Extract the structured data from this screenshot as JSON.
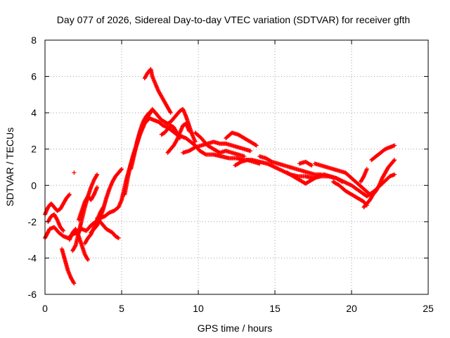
{
  "chart_data": {
    "type": "scatter",
    "title": "Day 077 of 2026, Sidereal Day-to-day VTEC variation (SDTVAR) for receiver gfth",
    "xlabel": "GPS time / hours",
    "ylabel": "SDTVAR / TECUs",
    "xlim": [
      0,
      25
    ],
    "ylim": [
      -6,
      8
    ],
    "xticks": [
      0,
      5,
      10,
      15,
      20,
      25
    ],
    "yticks": [
      -6,
      -4,
      -2,
      0,
      2,
      4,
      6,
      8
    ],
    "grid": true,
    "marker": "+",
    "series": [
      {
        "name": "SDTVAR",
        "color": "#ff0000",
        "tracks": [
          {
            "x": [
              0.0,
              0.3,
              0.6,
              0.9,
              1.2,
              1.5,
              1.8,
              2.1,
              2.4,
              2.7,
              3.0,
              3.3,
              3.6,
              3.9,
              4.2,
              4.5,
              4.8,
              5.0,
              5.3,
              5.6,
              5.9,
              6.2,
              6.5,
              6.8,
              7.1,
              7.4,
              7.7,
              8.0,
              8.3,
              8.6,
              8.9,
              9.2,
              9.5,
              9.8,
              10.1,
              10.5,
              11.0,
              11.5,
              12.0,
              12.5,
              13.0,
              13.5,
              14.0,
              14.5,
              15.0,
              15.5,
              16.0,
              16.5,
              17.0,
              17.5,
              18.0,
              18.5,
              19.0,
              19.5,
              20.0,
              20.5,
              21.0,
              21.5,
              22.0,
              22.5,
              22.8
            ],
            "y": [
              -2.9,
              -2.4,
              -2.3,
              -2.6,
              -2.8,
              -2.9,
              -2.7,
              -2.6,
              -2.4,
              -2.5,
              -2.2,
              -2.0,
              -1.8,
              -1.7,
              -1.5,
              -1.4,
              -1.2,
              -0.8,
              0.3,
              1.2,
              2.0,
              2.8,
              3.4,
              3.7,
              3.6,
              3.5,
              3.3,
              3.2,
              3.0,
              2.8,
              2.7,
              2.6,
              2.4,
              2.2,
              1.9,
              1.7,
              1.7,
              1.6,
              1.5,
              1.5,
              1.4,
              1.4,
              1.3,
              1.2,
              1.0,
              0.8,
              0.6,
              0.5,
              0.5,
              0.4,
              0.5,
              0.5,
              0.4,
              0.2,
              0.0,
              -0.3,
              -0.6,
              -0.3,
              0.1,
              0.5,
              0.6
            ]
          },
          {
            "x": [
              0.0,
              0.2,
              0.4,
              0.6,
              0.8,
              1.0,
              1.2,
              1.4,
              1.6
            ],
            "y": [
              -1.6,
              -1.2,
              -1.0,
              -1.2,
              -1.4,
              -1.3,
              -1.0,
              -0.7,
              -0.5
            ]
          },
          {
            "x": [
              0.2,
              0.4,
              0.6,
              0.8,
              1.0,
              1.2
            ],
            "y": [
              -2.0,
              -1.7,
              -1.6,
              -1.9,
              -2.3,
              -2.5
            ]
          },
          {
            "x": [
              1.1,
              1.3,
              1.5,
              1.7,
              1.9
            ],
            "y": [
              -3.5,
              -4.1,
              -4.7,
              -5.1,
              -5.4
            ]
          },
          {
            "x": [
              1.6,
              1.8,
              2.0,
              2.2,
              2.4,
              2.6,
              2.8
            ],
            "y": [
              -3.0,
              -2.6,
              -2.4,
              -2.8,
              -3.3,
              -3.8,
              -4.1
            ]
          },
          {
            "x": [
              1.8,
              2.0,
              2.2,
              2.4,
              2.6,
              2.8,
              3.0,
              3.2,
              3.4
            ],
            "y": [
              -3.6,
              -3.3,
              -2.6,
              -1.9,
              -1.2,
              -0.6,
              -0.1,
              0.3,
              0.6
            ]
          },
          {
            "x": [
              2.2,
              2.4,
              2.6,
              2.8,
              3.0,
              3.2,
              3.4
            ],
            "y": [
              -1.9,
              -1.4,
              -0.9,
              -0.6,
              -0.8,
              -0.5,
              -0.1
            ]
          },
          {
            "x": [
              2.6,
              2.8,
              3.0,
              3.2,
              3.4,
              3.6,
              3.8
            ],
            "y": [
              -3.2,
              -2.9,
              -2.7,
              -2.3,
              -1.9,
              -1.5,
              -1.2
            ]
          },
          {
            "x": [
              3.0,
              3.2,
              3.4,
              3.6,
              3.8,
              4.0,
              4.2,
              4.4,
              4.6,
              4.8,
              5.0
            ],
            "y": [
              -2.6,
              -2.4,
              -2.2,
              -1.8,
              -1.3,
              -0.7,
              -0.2,
              0.2,
              0.5,
              0.7,
              0.9
            ]
          },
          {
            "x": [
              3.4,
              3.6,
              3.8,
              4.0,
              4.2,
              4.4,
              4.6,
              4.8
            ],
            "y": [
              -1.8,
              -2.0,
              -2.2,
              -2.4,
              -2.5,
              -2.6,
              -2.8,
              -2.9
            ]
          },
          {
            "x": [
              1.9
            ],
            "y": [
              0.7
            ]
          },
          {
            "x": [
              5.2,
              5.4,
              5.6,
              5.8,
              6.0,
              6.2,
              6.4,
              6.6
            ],
            "y": [
              -0.5,
              0.4,
              1.2,
              1.8,
              2.3,
              2.9,
              3.3,
              3.6
            ]
          },
          {
            "x": [
              5.6,
              5.8,
              6.0,
              6.2,
              6.4,
              6.6,
              6.8,
              7.0
            ],
            "y": [
              0.9,
              1.6,
              2.4,
              3.0,
              3.5,
              3.8,
              4.0,
              4.1
            ]
          },
          {
            "x": [
              6.5,
              6.7,
              6.9,
              7.0,
              7.2,
              7.4,
              7.6,
              7.8,
              8.0,
              8.2
            ],
            "y": [
              5.9,
              6.2,
              6.4,
              6.0,
              5.6,
              5.2,
              4.9,
              4.6,
              4.3,
              4.0
            ]
          },
          {
            "x": [
              6.6,
              6.8,
              7.0,
              7.2,
              7.4,
              7.6,
              7.8,
              8.0,
              8.2,
              8.4,
              8.6,
              8.8,
              9.0,
              9.2,
              9.4,
              9.6,
              9.8
            ],
            "y": [
              3.6,
              3.9,
              4.2,
              4.0,
              3.8,
              3.6,
              3.5,
              3.4,
              3.5,
              3.7,
              3.9,
              4.1,
              4.2,
              3.8,
              3.3,
              2.8,
              2.4
            ]
          },
          {
            "x": [
              7.6,
              7.8,
              8.0,
              8.2,
              8.4,
              8.6,
              8.8
            ],
            "y": [
              2.8,
              2.9,
              3.1,
              3.3,
              3.2,
              2.9,
              2.6
            ]
          },
          {
            "x": [
              8.0,
              8.2,
              8.4,
              8.6,
              8.8,
              9.0,
              9.2,
              9.4
            ],
            "y": [
              1.8,
              2.0,
              2.2,
              2.5,
              2.9,
              3.3,
              3.4,
              3.0
            ]
          },
          {
            "x": [
              9.0,
              9.4,
              9.8,
              10.2,
              10.6,
              11.0,
              11.4,
              11.8,
              12.2,
              12.6,
              13.0,
              13.4
            ],
            "y": [
              1.8,
              1.9,
              2.1,
              2.2,
              2.3,
              2.4,
              2.3,
              2.3,
              2.2,
              2.1,
              2.0,
              1.9
            ]
          },
          {
            "x": [
              9.8,
              10.2,
              10.6,
              11.0,
              11.4,
              11.8,
              12.2,
              12.6,
              13.0
            ],
            "y": [
              2.9,
              2.6,
              2.2,
              2.0,
              1.8,
              1.9,
              1.8,
              1.7,
              1.6
            ]
          },
          {
            "x": [
              11.8,
              12.2,
              12.6,
              13.0,
              13.4,
              13.8
            ],
            "y": [
              2.6,
              2.9,
              2.8,
              2.6,
              2.4,
              2.2
            ]
          },
          {
            "x": [
              12.4,
              12.8,
              13.2,
              13.6,
              14.0
            ],
            "y": [
              1.1,
              1.3,
              1.4,
              1.3,
              1.2
            ]
          },
          {
            "x": [
              14.0,
              14.4,
              14.8,
              15.2,
              15.6,
              16.0,
              16.4,
              16.8,
              17.2,
              17.6,
              18.0
            ],
            "y": [
              1.6,
              1.5,
              1.3,
              1.2,
              1.1,
              1.0,
              0.9,
              0.8,
              0.7,
              0.6,
              0.6
            ]
          },
          {
            "x": [
              15.8,
              16.2,
              16.6,
              17.0,
              17.4,
              17.8,
              18.2,
              18.6,
              19.0,
              19.4
            ],
            "y": [
              0.7,
              0.5,
              0.3,
              0.1,
              0.3,
              0.5,
              0.6,
              0.5,
              0.4,
              0.2
            ]
          },
          {
            "x": [
              16.6,
              17.0,
              17.4
            ],
            "y": [
              1.2,
              1.3,
              1.1
            ]
          },
          {
            "x": [
              17.6,
              18.0,
              18.4,
              18.8,
              19.2,
              19.6,
              20.0,
              20.4,
              20.8,
              21.2
            ],
            "y": [
              1.2,
              1.1,
              1.0,
              0.9,
              0.8,
              0.7,
              0.4,
              0.1,
              -0.2,
              -0.5
            ]
          },
          {
            "x": [
              18.8,
              19.2,
              19.6,
              20.0,
              20.4,
              20.8,
              21.0
            ],
            "y": [
              0.2,
              0.0,
              -0.3,
              -0.5,
              -0.7,
              -0.9,
              -1.1
            ]
          },
          {
            "x": [
              20.8,
              21.0,
              21.2,
              21.4,
              21.6,
              21.8,
              22.0,
              22.2,
              22.4,
              22.6,
              22.8
            ],
            "y": [
              -1.2,
              -1.0,
              -0.8,
              -0.5,
              -0.3,
              0.0,
              0.4,
              0.7,
              1.0,
              1.2,
              1.4
            ]
          },
          {
            "x": [
              21.3,
              21.6,
              21.9,
              22.2,
              22.5,
              22.8
            ],
            "y": [
              1.4,
              1.6,
              1.8,
              2.0,
              2.1,
              2.2
            ]
          },
          {
            "x": [
              20.6,
              20.8,
              21.0
            ],
            "y": [
              0.2,
              0.5,
              0.9
            ]
          }
        ]
      }
    ]
  }
}
